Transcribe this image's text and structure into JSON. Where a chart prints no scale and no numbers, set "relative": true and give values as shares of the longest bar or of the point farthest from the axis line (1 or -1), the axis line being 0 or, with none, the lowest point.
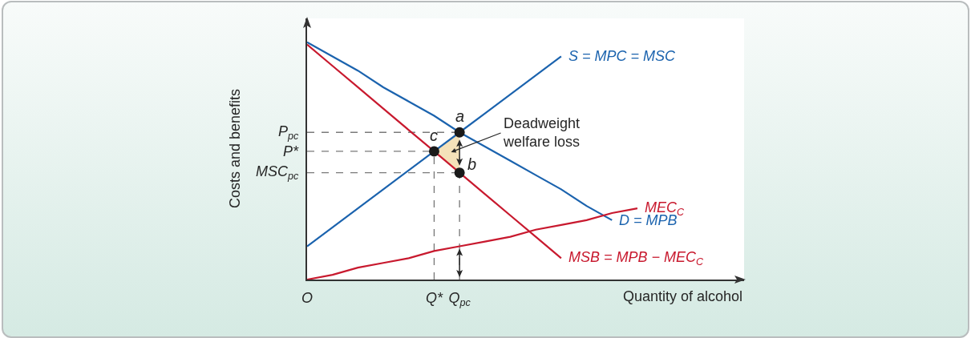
{
  "chart_data": {
    "type": "line",
    "relative": true,
    "xlabel": "Quantity of alcohol",
    "ylabel": "Costs and benefits",
    "categories": [
      "O",
      null,
      null,
      null,
      null,
      "Q*",
      "Q$_{pc}$",
      null,
      null,
      null,
      null,
      null,
      null,
      null
    ],
    "series": [
      {
        "type": "area",
        "color": "#f4e1b9",
        "x": [
          "Q*",
          "Q$_{pc}$",
          "Q$_{pc}$"
        ],
        "values": [
          0.54,
          0.62,
          0.45
        ]
      },
      {
        "name": "S = MPC = MSC",
        "color": "#1b63ae",
        "values": [
          0.14,
          0.22,
          0.3,
          0.38,
          0.46,
          0.54,
          0.62,
          0.7,
          0.78,
          0.86,
          0.94,
          null,
          null,
          null
        ]
      },
      {
        "name": "D = MPB",
        "color": "#1b63ae",
        "values": [
          1,
          0.94,
          0.88,
          0.81,
          0.75,
          0.69,
          0.62,
          0.56,
          0.5,
          0.44,
          0.38,
          0.31,
          0.25,
          null
        ]
      },
      {
        "name": "MEC$_{C}$",
        "color": "#c8192e",
        "values": [
          0,
          0.02,
          0.05,
          0.07,
          0.09,
          0.12,
          0.14,
          0.16,
          0.18,
          0.21,
          0.23,
          0.25,
          0.28,
          0.3
        ]
      },
      {
        "name": "MSB = MPB − MEC$_{C}$",
        "color": "#c8192e",
        "values": [
          0.99,
          0.9,
          0.81,
          0.72,
          0.63,
          0.54,
          0.45,
          0.36,
          0.27,
          0.18,
          0.09,
          null,
          null,
          null
        ]
      },
      {
        "type": "lollipop",
        "color": "#1a1a1a",
        "marker": "circle",
        "line_style": "dashed",
        "x": [
          "Q*",
          "Q$_{pc}$"
        ],
        "values": [
          0.54,
          0.62
        ]
      },
      {
        "type": "scatter",
        "marker": "circle",
        "color": "#1a1a1a",
        "x": [
          "Q$_{pc}$"
        ],
        "values": [
          0.45
        ]
      }
    ],
    "ref_lines": [
      {
        "axis": "y",
        "value": 0.62,
        "label": "P$_{pc}$",
        "line_style": "dashed",
        "color": "#7a7a7a"
      },
      {
        "axis": "y",
        "value": 0.54,
        "label": "P*",
        "line_style": "dashed",
        "color": "#7a7a7a"
      },
      {
        "axis": "y",
        "value": 0.45,
        "label": "MSC$_{pc}$",
        "line_style": "dashed",
        "color": "#7a7a7a"
      }
    ],
    "annotations": [
      {
        "text": "a",
        "x": "Q$_{pc}$",
        "y": 0.62
      },
      {
        "text": "c",
        "x": "Q*",
        "y": 0.54
      },
      {
        "text": "b",
        "x": "Q$_{pc}$",
        "y": 0.45
      },
      "Deadweight\nwelfare loss"
    ],
    "legend": false
  }
}
